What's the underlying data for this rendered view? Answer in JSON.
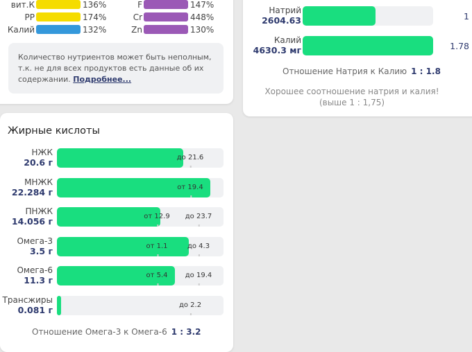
{
  "vitamins_left": [
    {
      "label": "вит.К",
      "pct": "136%",
      "color": "#f5dc00"
    },
    {
      "label": "PP",
      "pct": "174%",
      "color": "#f5dc00"
    },
    {
      "label": "Калий",
      "pct": "132%",
      "color": "#3498db"
    }
  ],
  "vitamins_right": [
    {
      "label": "F",
      "pct": "147%",
      "color": "#9b59b6"
    },
    {
      "label": "Cr",
      "pct": "448%",
      "color": "#9b59b6"
    },
    {
      "label": "Zn",
      "pct": "130%",
      "color": "#9b59b6"
    }
  ],
  "note": {
    "text": "Количество нутриентов может быть неполным, т.к. не для всех продуктов есть данные об их содержании.",
    "link": "Подробнее..."
  },
  "fats": {
    "title": "Жирные кислоты",
    "rows": [
      {
        "name": "НЖК",
        "value": "20.6 г",
        "fill_pct": 76,
        "markers": [
          {
            "label": "до 21.6",
            "pos_pct": 80
          }
        ]
      },
      {
        "name": "МНЖК",
        "value": "22.284 г",
        "fill_pct": 92,
        "markers": [
          {
            "label": "от 19.4",
            "pos_pct": 80
          }
        ]
      },
      {
        "name": "ПНЖК",
        "value": "14.056 г",
        "fill_pct": 62,
        "markers": [
          {
            "label": "от 12.9",
            "pos_pct": 60
          },
          {
            "label": "до 23.7",
            "pos_pct": 85
          }
        ]
      },
      {
        "name": "Омега-3",
        "value": "3.5 г",
        "fill_pct": 79,
        "markers": [
          {
            "label": "от 1.1",
            "pos_pct": 60
          },
          {
            "label": "до 4.3",
            "pos_pct": 85
          }
        ]
      },
      {
        "name": "Омега-6",
        "value": "11.3 г",
        "fill_pct": 71,
        "markers": [
          {
            "label": "от 5.4",
            "pos_pct": 60
          },
          {
            "label": "до 19.4",
            "pos_pct": 85
          }
        ]
      },
      {
        "name": "Трансжиры",
        "value": "0.081 г",
        "fill_pct": 2.5,
        "markers": [
          {
            "label": "до 2.2",
            "pos_pct": 80
          }
        ]
      }
    ],
    "ratio_label": "Отношение Омега-3 к Омега-6",
    "ratio_value": "1 : 3.2"
  },
  "sodium": {
    "rows": [
      {
        "name": "Натрий",
        "value": "2604.63",
        "fill_pct": 56,
        "ratio": "1"
      },
      {
        "name": "Калий",
        "value": "4630.3 мг",
        "fill_pct": 100,
        "ratio": "1.78"
      }
    ],
    "ratio_label": "Отношение Натрия к Калию",
    "ratio_value": "1 : 1.8",
    "message": "Хорошее соотношение натрия и калия! (выше 1 : 1,75)"
  }
}
